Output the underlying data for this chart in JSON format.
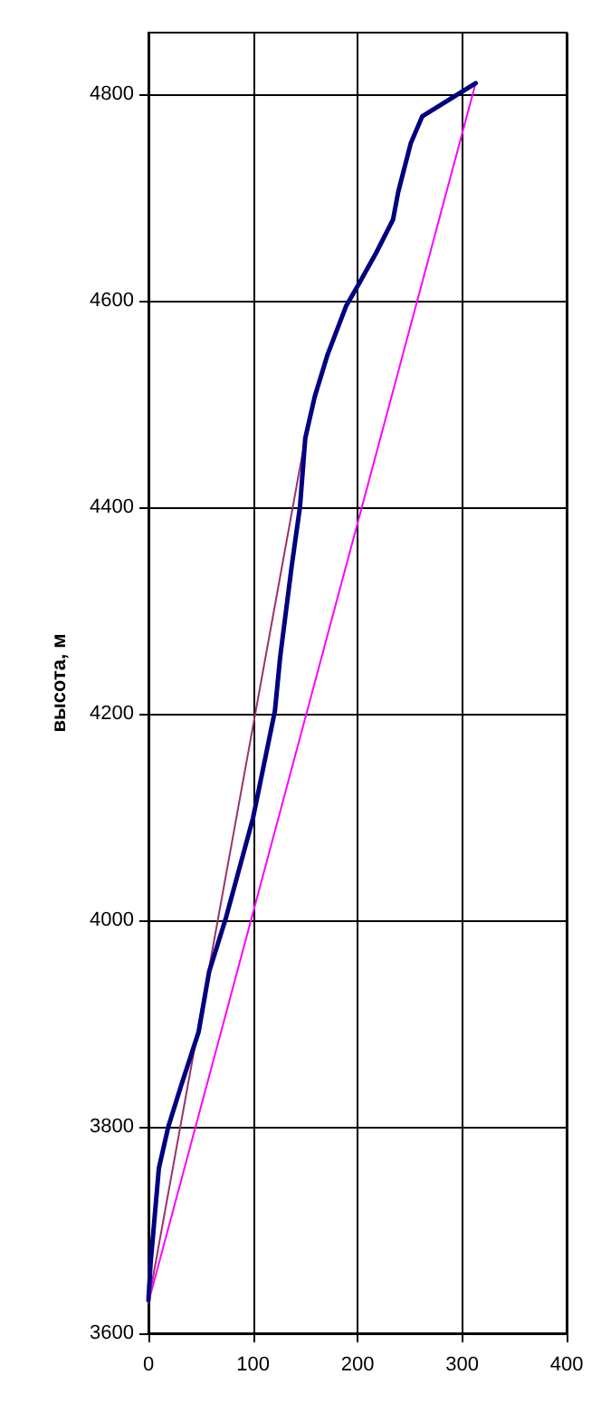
{
  "chart_data": {
    "type": "line",
    "ylabel": "высота, м",
    "xlim": [
      0,
      400
    ],
    "xticks": [
      0,
      100,
      200,
      300,
      400
    ],
    "ylim": [
      3600,
      4860
    ],
    "yticks": [
      3600,
      3800,
      4000,
      4200,
      4400,
      4600,
      4800
    ],
    "grid": true,
    "marker": "none",
    "line_style": "solid",
    "series": [
      {
        "color": "#000080",
        "x": [
          0,
          2,
          10,
          19,
          31,
          48,
          58,
          74,
          100,
          121,
          126,
          137,
          145,
          150,
          159,
          171,
          189,
          201,
          218,
          234,
          239,
          251,
          262,
          313
        ],
        "values": [
          3632,
          3667,
          3760,
          3800,
          3839,
          3892,
          3950,
          4002,
          4099,
          4203,
          4255,
          4343,
          4401,
          4467,
          4507,
          4547,
          4595,
          4616,
          4647,
          4679,
          4706,
          4753,
          4779,
          4811
        ]
      },
      {
        "color": "#ff00ff",
        "x": [
          0,
          313
        ],
        "values": [
          3630,
          4811
        ]
      },
      {
        "color": "#993366",
        "x": [
          0,
          150
        ],
        "values": [
          3630,
          4467
        ]
      }
    ]
  }
}
